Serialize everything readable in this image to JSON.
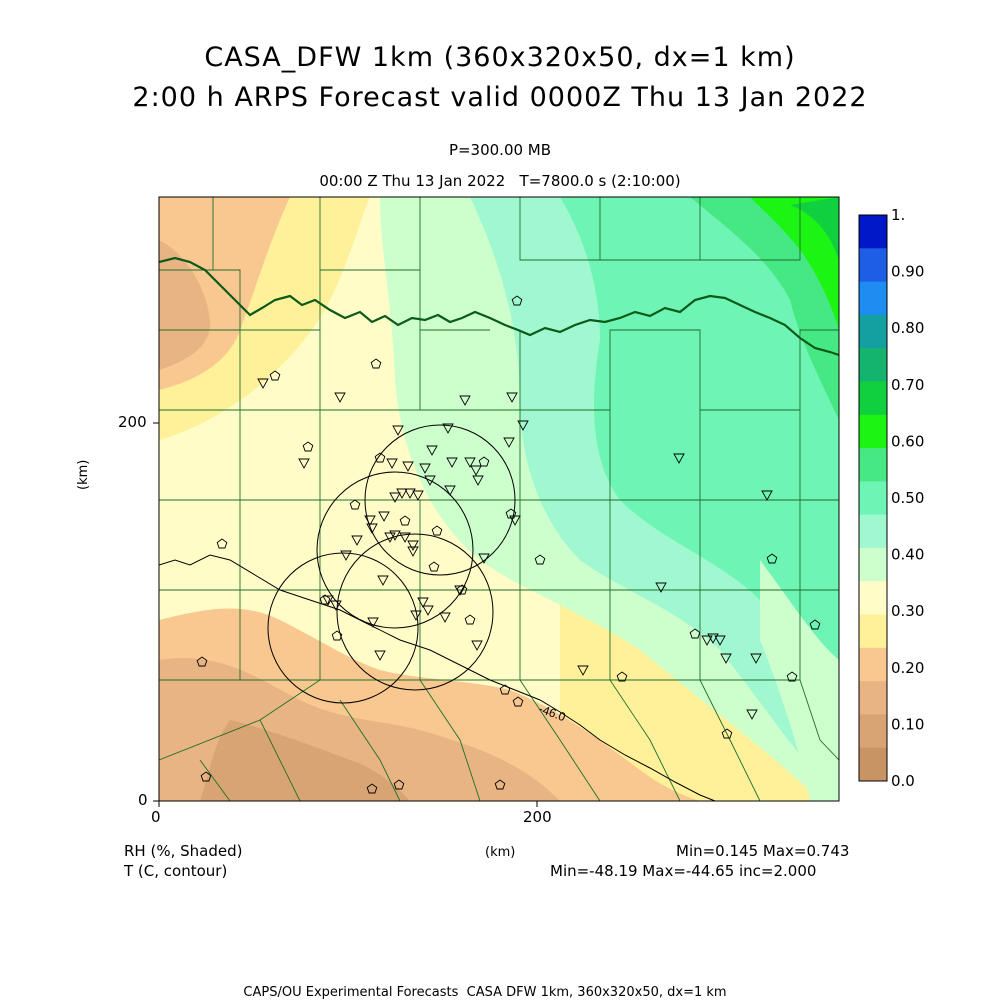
{
  "title_line1": "CASA_DFW 1km (360x320x50, dx=1 km)",
  "title_line2": "2:00 h ARPS Forecast valid 0000Z Thu 13 Jan 2022",
  "subtitle_level": "P=300.00 MB",
  "subtitle_time": "00:00 Z Thu 13 Jan 2022   T=7800.0 s (2:10:00)",
  "axes": {
    "x_unit": "(km)",
    "y_unit": "(km)",
    "x_ticks": [
      "0",
      "200"
    ],
    "y_ticks": [
      "0",
      "200"
    ]
  },
  "legend": {
    "labels": [
      "1.",
      "0.90",
      "0.80",
      "0.70",
      "0.60",
      "0.50",
      "0.40",
      "0.30",
      "0.20",
      "0.10",
      "0.0"
    ],
    "colors": [
      "#0018c8",
      "#1e5ee6",
      "#1e8cf0",
      "#14a0a0",
      "#14b46e",
      "#10d040",
      "#1cf414",
      "#46e884",
      "#6ef4b4",
      "#a0f8d0",
      "#ccffcc",
      "#fffcc8",
      "#fff09a",
      "#f8c890",
      "#e8b484",
      "#d8a474",
      "#c89464"
    ]
  },
  "contour_label": "-46.0",
  "fields": {
    "shaded_name": "RH (%, Shaded)",
    "contour_name": "T (C, contour)",
    "shaded_range": "Min=0.145 Max=0.743",
    "contour_range": "Min=-48.19 Max=-44.65 inc=2.000"
  },
  "footer": "CAPS/OU Experimental Forecasts  CASA DFW 1km, 360x320x50, dx=1 km",
  "colors": {
    "county_lines": "#1f6e2a",
    "state_line": "#0b5a1a"
  }
}
